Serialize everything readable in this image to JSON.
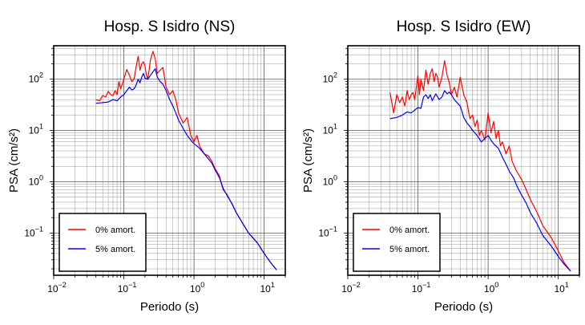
{
  "chart_data": [
    {
      "type": "line",
      "title": "Hosp. S Isidro (NS)",
      "xlabel": "Periodo (s)",
      "ylabel": "PSA (cm/s²)",
      "xscale": "log",
      "yscale": "log",
      "xlim": [
        0.01,
        20
      ],
      "ylim": [
        0.015,
        450
      ],
      "xticks": [
        {
          "base": "10",
          "exp": "−2"
        },
        {
          "base": "10",
          "exp": "−1"
        },
        {
          "base": "10",
          "exp": "0"
        },
        {
          "base": "10",
          "exp": "1"
        }
      ],
      "yticks": [
        {
          "base": "10",
          "exp": "−1"
        },
        {
          "base": "10",
          "exp": "0"
        },
        {
          "base": "10",
          "exp": "1"
        },
        {
          "base": "10",
          "exp": "2"
        }
      ],
      "grid": true,
      "legend_position": "bottom-left",
      "series": [
        {
          "name": "0% amort.",
          "color": "#ff0000",
          "x": [
            0.04,
            0.045,
            0.05,
            0.055,
            0.06,
            0.065,
            0.07,
            0.075,
            0.08,
            0.085,
            0.09,
            0.095,
            0.1,
            0.11,
            0.12,
            0.13,
            0.14,
            0.15,
            0.16,
            0.17,
            0.18,
            0.19,
            0.2,
            0.21,
            0.22,
            0.24,
            0.26,
            0.28,
            0.3,
            0.33,
            0.36,
            0.4,
            0.45,
            0.5,
            0.55,
            0.6,
            0.7,
            0.8,
            0.9,
            1.0,
            1.1,
            1.2,
            1.4,
            1.6,
            1.8,
            2.0,
            2.3,
            2.6,
            3.0,
            3.5,
            4.0,
            5.0,
            6.0,
            8.0,
            10.0,
            12.0,
            15.0
          ],
          "y": [
            40,
            38,
            48,
            45,
            58,
            50,
            48,
            60,
            50,
            90,
            65,
            80,
            100,
            155,
            120,
            90,
            100,
            180,
            280,
            150,
            200,
            220,
            180,
            120,
            100,
            240,
            350,
            250,
            130,
            150,
            170,
            70,
            50,
            60,
            40,
            22,
            14,
            18,
            8,
            6,
            8,
            5,
            3.5,
            3.2,
            2.5,
            1.8,
            1.3,
            0.7,
            0.55,
            0.36,
            0.25,
            0.15,
            0.1,
            0.064,
            0.04,
            0.028,
            0.019
          ]
        },
        {
          "name": "5% amort.",
          "color": "#0000ff",
          "x": [
            0.04,
            0.05,
            0.06,
            0.07,
            0.08,
            0.09,
            0.1,
            0.11,
            0.12,
            0.13,
            0.14,
            0.15,
            0.16,
            0.17,
            0.18,
            0.19,
            0.2,
            0.22,
            0.24,
            0.26,
            0.28,
            0.3,
            0.33,
            0.36,
            0.4,
            0.45,
            0.5,
            0.55,
            0.6,
            0.7,
            0.8,
            0.9,
            1.0,
            1.1,
            1.2,
            1.4,
            1.6,
            1.8,
            2.0,
            2.3,
            2.6,
            3.0,
            3.5,
            4.0,
            5.0,
            6.0,
            8.0,
            10.0,
            12.0,
            15.0
          ],
          "y": [
            34,
            35,
            36,
            40,
            38,
            45,
            50,
            60,
            70,
            62,
            65,
            78,
            100,
            85,
            110,
            130,
            105,
            100,
            120,
            140,
            160,
            110,
            90,
            80,
            60,
            40,
            30,
            22,
            16,
            11,
            8,
            6.5,
            5.5,
            5,
            4.5,
            3.5,
            2.8,
            2.3,
            1.7,
            1.2,
            0.75,
            0.52,
            0.37,
            0.25,
            0.15,
            0.1,
            0.064,
            0.04,
            0.028,
            0.019
          ]
        }
      ]
    },
    {
      "type": "line",
      "title": "Hosp. S Isidro (EW)",
      "xlabel": "Periodo (s)",
      "ylabel": "PSA (cm/s²)",
      "xscale": "log",
      "yscale": "log",
      "xlim": [
        0.01,
        20
      ],
      "ylim": [
        0.015,
        450
      ],
      "xticks": [
        {
          "base": "10",
          "exp": "−2"
        },
        {
          "base": "10",
          "exp": "−1"
        },
        {
          "base": "10",
          "exp": "0"
        },
        {
          "base": "10",
          "exp": "1"
        }
      ],
      "yticks": [
        {
          "base": "10",
          "exp": "−1"
        },
        {
          "base": "10",
          "exp": "0"
        },
        {
          "base": "10",
          "exp": "1"
        },
        {
          "base": "10",
          "exp": "2"
        }
      ],
      "grid": true,
      "legend_position": "bottom-left",
      "series": [
        {
          "name": "0% amort.",
          "color": "#ff0000",
          "x": [
            0.04,
            0.045,
            0.05,
            0.055,
            0.06,
            0.065,
            0.07,
            0.075,
            0.08,
            0.085,
            0.09,
            0.095,
            0.1,
            0.105,
            0.11,
            0.12,
            0.13,
            0.14,
            0.15,
            0.16,
            0.17,
            0.18,
            0.19,
            0.2,
            0.22,
            0.24,
            0.26,
            0.28,
            0.3,
            0.33,
            0.36,
            0.4,
            0.45,
            0.5,
            0.55,
            0.6,
            0.65,
            0.7,
            0.75,
            0.8,
            0.9,
            1.0,
            1.1,
            1.2,
            1.3,
            1.4,
            1.5,
            1.6,
            1.8,
            2.0,
            2.2,
            2.5,
            3.0,
            3.5,
            4.0,
            5.0,
            6.0,
            8.0,
            10.0,
            12.0,
            15.0
          ],
          "y": [
            55,
            22,
            50,
            35,
            45,
            30,
            60,
            40,
            50,
            55,
            40,
            70,
            120,
            50,
            100,
            60,
            150,
            80,
            130,
            160,
            90,
            130,
            110,
            70,
            110,
            230,
            120,
            85,
            50,
            70,
            45,
            110,
            50,
            35,
            17,
            20,
            12,
            16,
            8,
            10,
            6.5,
            22,
            9,
            15,
            7,
            10,
            5,
            6,
            3.5,
            5,
            2.5,
            1.7,
            1.1,
            0.7,
            0.45,
            0.25,
            0.14,
            0.08,
            0.045,
            0.027,
            0.018
          ]
        },
        {
          "name": "5% amort.",
          "color": "#0000ff",
          "x": [
            0.04,
            0.05,
            0.06,
            0.07,
            0.08,
            0.09,
            0.1,
            0.11,
            0.12,
            0.13,
            0.14,
            0.15,
            0.16,
            0.17,
            0.18,
            0.2,
            0.22,
            0.24,
            0.26,
            0.28,
            0.3,
            0.33,
            0.36,
            0.4,
            0.45,
            0.5,
            0.55,
            0.6,
            0.7,
            0.8,
            0.9,
            1.0,
            1.1,
            1.2,
            1.4,
            1.6,
            1.8,
            2.0,
            2.3,
            2.6,
            3.0,
            3.5,
            4.0,
            5.0,
            6.0,
            8.0,
            10.0,
            12.0,
            15.0
          ],
          "y": [
            17,
            18,
            20,
            23,
            22,
            25,
            28,
            27,
            45,
            50,
            42,
            50,
            38,
            45,
            52,
            40,
            45,
            60,
            52,
            56,
            50,
            40,
            35,
            30,
            18,
            14,
            12,
            10,
            8,
            6,
            7,
            8,
            6.5,
            5.5,
            4.5,
            3,
            2.2,
            1.6,
            1.2,
            0.8,
            0.55,
            0.38,
            0.25,
            0.15,
            0.09,
            0.055,
            0.035,
            0.025,
            0.018
          ]
        }
      ]
    }
  ]
}
